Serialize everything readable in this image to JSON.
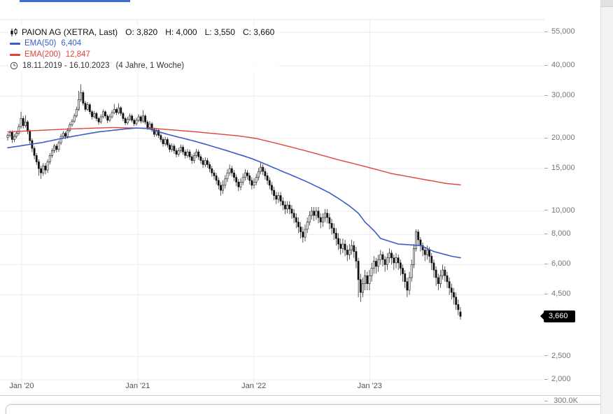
{
  "ui": {
    "top_accent_color": "#3d6bd8",
    "background": "#ffffff"
  },
  "legend": {
    "symbol": "PAION AG (XETRA, Last)",
    "ohlc_items": [
      "O: 3,820",
      "H: 4,000",
      "L: 3,550",
      "C: 3,660"
    ],
    "ema50": {
      "label": "EMA(50)",
      "value": "6,404",
      "color": "#3a5cc8"
    },
    "ema200": {
      "label": "EMA(200)",
      "value": "12,847",
      "color": "#e04338"
    },
    "period": {
      "range": "18.11.2019 - 16.10.2023",
      "detail": "(4 Jahre, 1 Woche)"
    }
  },
  "axes": {
    "y_ticks": [
      {
        "label": "55,000",
        "value": 55000
      },
      {
        "label": "40,000",
        "value": 40000
      },
      {
        "label": "30,000",
        "value": 30000
      },
      {
        "label": "20,000",
        "value": 20000
      },
      {
        "label": "15,000",
        "value": 15000
      },
      {
        "label": "10,000",
        "value": 10000
      },
      {
        "label": "8,000",
        "value": 8000
      },
      {
        "label": "6,000",
        "value": 6000
      },
      {
        "label": "4,500",
        "value": 4500
      },
      {
        "label": "2,500",
        "value": 2500
      },
      {
        "label": "2,000",
        "value": 2000
      }
    ],
    "x_ticks": [
      {
        "label": "Jan '20",
        "week": 6.3
      },
      {
        "label": "Jan '21",
        "week": 58.6
      },
      {
        "label": "Jan '22",
        "week": 110.9
      },
      {
        "label": "Jan '23",
        "week": 163.1
      }
    ],
    "price_badge": {
      "label": "3,660",
      "value": 3660,
      "bg": "#000000",
      "fg": "#ffffff"
    },
    "volume_tick": "300.0K"
  },
  "chart_data": {
    "type": "candlestick",
    "symbol": "PAION AG",
    "exchange": "XETRA",
    "timeframe": "weekly (1 Woche)",
    "date_range": "18.11.2019 - 16.10.2023",
    "duration": "4 Jahre, 1 Woche",
    "scale": "logarithmic",
    "ylim": [
      1900,
      62000
    ],
    "y_gridlines": [
      55000,
      40000,
      30000,
      20000,
      15000,
      10000,
      8000,
      6000,
      4500,
      2500,
      2000
    ],
    "x_tick_labels": [
      "Jan '20",
      "Jan '21",
      "Jan '22",
      "Jan '23"
    ],
    "last_bar": {
      "open": 3820,
      "high": 4000,
      "low": 3550,
      "close": 3660
    },
    "indicators": [
      {
        "name": "EMA(50)",
        "value": 6404,
        "color": "#3a5cc8"
      },
      {
        "name": "EMA(200)",
        "value": 12847,
        "color": "#e04338"
      }
    ],
    "candles_ohlc": [
      [
        20200,
        21000,
        19600,
        20600
      ],
      [
        20600,
        21600,
        20200,
        21200
      ],
      [
        21200,
        21600,
        19200,
        19800
      ],
      [
        19800,
        20900,
        19300,
        20400
      ],
      [
        20400,
        21500,
        20000,
        21000
      ],
      [
        21000,
        23000,
        20600,
        22400
      ],
      [
        22400,
        25800,
        22000,
        24200
      ],
      [
        24200,
        24800,
        22000,
        22600
      ],
      [
        22600,
        25000,
        22200,
        23400
      ],
      [
        23400,
        23800,
        20800,
        21400
      ],
      [
        21400,
        21800,
        19000,
        19600
      ],
      [
        19600,
        20000,
        17600,
        18200
      ],
      [
        18200,
        18600,
        16400,
        17000
      ],
      [
        17000,
        17400,
        15500,
        16000
      ],
      [
        16000,
        16400,
        14000,
        15000
      ],
      [
        15000,
        15400,
        13600,
        14400
      ],
      [
        14400,
        15800,
        14000,
        15400
      ],
      [
        15400,
        15800,
        14200,
        14800
      ],
      [
        14800,
        16400,
        14400,
        16000
      ],
      [
        16000,
        17400,
        15600,
        17000
      ],
      [
        17000,
        18200,
        16600,
        17800
      ],
      [
        17800,
        19000,
        17400,
        18600
      ],
      [
        18600,
        19000,
        17500,
        18000
      ],
      [
        18000,
        19600,
        17600,
        19200
      ],
      [
        19200,
        20900,
        18800,
        20400
      ],
      [
        20400,
        21500,
        20000,
        21000
      ],
      [
        21000,
        21400,
        19900,
        20400
      ],
      [
        20400,
        22100,
        20000,
        21600
      ],
      [
        21600,
        23300,
        21200,
        22800
      ],
      [
        22800,
        24100,
        22400,
        23600
      ],
      [
        23600,
        25400,
        23200,
        24800
      ],
      [
        24800,
        27100,
        24400,
        26400
      ],
      [
        26400,
        31500,
        26000,
        29000
      ],
      [
        29000,
        33500,
        28400,
        31000
      ],
      [
        31000,
        31600,
        27400,
        28000
      ],
      [
        28000,
        28600,
        25800,
        26400
      ],
      [
        26400,
        28300,
        26000,
        27600
      ],
      [
        27600,
        28000,
        25200,
        25800
      ],
      [
        25800,
        26200,
        24000,
        24600
      ],
      [
        24600,
        26000,
        24200,
        25400
      ],
      [
        25400,
        25800,
        23600,
        24200
      ],
      [
        24200,
        24600,
        22800,
        23400
      ],
      [
        23400,
        25200,
        23000,
        24600
      ],
      [
        24600,
        26400,
        24200,
        25800
      ],
      [
        25800,
        26200,
        24200,
        24800
      ],
      [
        24800,
        25200,
        23200,
        23800
      ],
      [
        23800,
        25200,
        23400,
        24600
      ],
      [
        24600,
        26200,
        24200,
        25600
      ],
      [
        25600,
        27800,
        25200,
        26400
      ],
      [
        26400,
        26800,
        25000,
        25600
      ],
      [
        25600,
        28000,
        25200,
        26800
      ],
      [
        26800,
        27200,
        24800,
        25400
      ],
      [
        25400,
        25800,
        23600,
        24200
      ],
      [
        24200,
        24600,
        22700,
        23200
      ],
      [
        23200,
        24600,
        22800,
        24000
      ],
      [
        24000,
        25400,
        23600,
        24800
      ],
      [
        24800,
        25200,
        23300,
        23800
      ],
      [
        23800,
        24200,
        22500,
        23000
      ],
      [
        23000,
        24400,
        22600,
        23800
      ],
      [
        23800,
        25200,
        23400,
        24600
      ],
      [
        24600,
        25000,
        23100,
        23600
      ],
      [
        23600,
        26200,
        23200,
        24800
      ],
      [
        24800,
        25200,
        22900,
        23400
      ],
      [
        23400,
        23800,
        21700,
        22200
      ],
      [
        22200,
        23600,
        21800,
        23000
      ],
      [
        23000,
        23400,
        21300,
        21800
      ],
      [
        21800,
        22200,
        20300,
        20800
      ],
      [
        20800,
        22100,
        20400,
        21600
      ],
      [
        21600,
        22000,
        20100,
        20600
      ],
      [
        20600,
        21000,
        19300,
        19800
      ],
      [
        19800,
        20200,
        18500,
        19000
      ],
      [
        19000,
        20300,
        18600,
        19800
      ],
      [
        19800,
        20200,
        18300,
        18800
      ],
      [
        18800,
        19200,
        17500,
        18000
      ],
      [
        18000,
        19100,
        17600,
        18600
      ],
      [
        18600,
        19000,
        17300,
        17800
      ],
      [
        17800,
        18200,
        16700,
        17200
      ],
      [
        17200,
        18300,
        16800,
        17800
      ],
      [
        17800,
        18900,
        17400,
        18400
      ],
      [
        18400,
        18800,
        17100,
        17600
      ],
      [
        17600,
        18000,
        16500,
        17000
      ],
      [
        17000,
        18100,
        16600,
        17600
      ],
      [
        17600,
        18000,
        16300,
        16800
      ],
      [
        16800,
        17200,
        15700,
        16200
      ],
      [
        16200,
        17500,
        15800,
        17000
      ],
      [
        17000,
        18100,
        16600,
        17600
      ],
      [
        17600,
        18000,
        16300,
        16800
      ],
      [
        16800,
        17200,
        15700,
        16200
      ],
      [
        16200,
        16600,
        15100,
        15600
      ],
      [
        15600,
        16700,
        15200,
        16200
      ],
      [
        16200,
        16600,
        15100,
        15600
      ],
      [
        15600,
        16000,
        14500,
        15000
      ],
      [
        15000,
        15400,
        13900,
        14400
      ],
      [
        14400,
        14800,
        13500,
        14000
      ],
      [
        14000,
        14400,
        12900,
        13400
      ],
      [
        13400,
        13800,
        12300,
        12800
      ],
      [
        12800,
        13200,
        11600,
        12200
      ],
      [
        12200,
        13400,
        11800,
        12800
      ],
      [
        12800,
        14100,
        12400,
        13600
      ],
      [
        13600,
        14900,
        13200,
        14400
      ],
      [
        14400,
        15600,
        14000,
        15000
      ],
      [
        15000,
        15400,
        13900,
        14400
      ],
      [
        14400,
        14800,
        13300,
        13800
      ],
      [
        13800,
        14200,
        12700,
        13200
      ],
      [
        13200,
        13600,
        12100,
        12600
      ],
      [
        12600,
        13700,
        12200,
        13200
      ],
      [
        13200,
        14300,
        12800,
        13800
      ],
      [
        13800,
        14900,
        13400,
        14400
      ],
      [
        14400,
        14800,
        13500,
        14000
      ],
      [
        14000,
        14400,
        12900,
        13400
      ],
      [
        13400,
        13800,
        12300,
        12800
      ],
      [
        12800,
        13700,
        12400,
        13200
      ],
      [
        13200,
        14300,
        12800,
        13800
      ],
      [
        13800,
        15100,
        13400,
        14600
      ],
      [
        14600,
        16000,
        14200,
        15200
      ],
      [
        15200,
        15600,
        14100,
        14600
      ],
      [
        14600,
        15000,
        13500,
        14000
      ],
      [
        14000,
        14400,
        12900,
        13400
      ],
      [
        13400,
        13800,
        12300,
        12800
      ],
      [
        12800,
        13200,
        11700,
        12200
      ],
      [
        12200,
        12600,
        11100,
        11600
      ],
      [
        11600,
        12000,
        10700,
        11200
      ],
      [
        11200,
        12000,
        10800,
        11600
      ],
      [
        11600,
        12000,
        10500,
        11000
      ],
      [
        11000,
        11400,
        10100,
        10600
      ],
      [
        10600,
        11000,
        9700,
        10200
      ],
      [
        10200,
        11000,
        9800,
        10600
      ],
      [
        10600,
        11000,
        9700,
        10200
      ],
      [
        10200,
        10600,
        9300,
        9800
      ],
      [
        9800,
        10200,
        8900,
        9400
      ],
      [
        9400,
        9800,
        8500,
        9000
      ],
      [
        9000,
        9400,
        8100,
        8600
      ],
      [
        8600,
        9000,
        7700,
        8200
      ],
      [
        8200,
        8600,
        7400,
        7800
      ],
      [
        7800,
        8800,
        7500,
        8400
      ],
      [
        8400,
        9400,
        8100,
        9000
      ],
      [
        9000,
        10000,
        8700,
        9600
      ],
      [
        9600,
        10400,
        9200,
        10000
      ],
      [
        10000,
        10400,
        9100,
        9600
      ],
      [
        9600,
        10400,
        9200,
        10000
      ],
      [
        10000,
        10400,
        8900,
        9400
      ],
      [
        9400,
        9800,
        8500,
        9000
      ],
      [
        9000,
        9800,
        8600,
        9400
      ],
      [
        9400,
        10200,
        9000,
        9800
      ],
      [
        9800,
        10200,
        8900,
        9400
      ],
      [
        9400,
        9800,
        8400,
        8900
      ],
      [
        8900,
        9300,
        8000,
        8500
      ],
      [
        8500,
        8900,
        7600,
        8100
      ],
      [
        8100,
        8500,
        7200,
        7700
      ],
      [
        7700,
        8100,
        6900,
        7300
      ],
      [
        7300,
        7700,
        6600,
        7000
      ],
      [
        7000,
        7700,
        6700,
        7300
      ],
      [
        7300,
        7600,
        6500,
        6900
      ],
      [
        6900,
        7200,
        6200,
        6600
      ],
      [
        6600,
        7300,
        6300,
        6900
      ],
      [
        6900,
        7600,
        6600,
        7200
      ],
      [
        7200,
        7500,
        6400,
        6800
      ],
      [
        6800,
        7100,
        5800,
        6200
      ],
      [
        6200,
        6400,
        4400,
        5200
      ],
      [
        5200,
        5500,
        4200,
        4600
      ],
      [
        4600,
        5300,
        4400,
        5000
      ],
      [
        5000,
        5700,
        4700,
        5400
      ],
      [
        5400,
        5600,
        4700,
        5000
      ],
      [
        5000,
        5700,
        4700,
        5400
      ],
      [
        5400,
        6100,
        5100,
        5800
      ],
      [
        5800,
        6500,
        5500,
        6200
      ],
      [
        6200,
        6400,
        5500,
        5900
      ],
      [
        5900,
        6600,
        5600,
        6300
      ],
      [
        6300,
        6900,
        6000,
        6600
      ],
      [
        6600,
        6800,
        5900,
        6300
      ],
      [
        6300,
        6500,
        5600,
        6000
      ],
      [
        6000,
        6700,
        5700,
        6400
      ],
      [
        6400,
        7000,
        6100,
        6700
      ],
      [
        6700,
        6900,
        6000,
        6400
      ],
      [
        6400,
        6600,
        5700,
        6100
      ],
      [
        6100,
        6700,
        5800,
        6400
      ],
      [
        6400,
        6600,
        5700,
        6100
      ],
      [
        6100,
        6300,
        5400,
        5800
      ],
      [
        5800,
        6000,
        5100,
        5500
      ],
      [
        5500,
        5700,
        4800,
        5100
      ],
      [
        5100,
        5300,
        4400,
        4700
      ],
      [
        4700,
        5600,
        4500,
        5300
      ],
      [
        5300,
        6300,
        5100,
        6000
      ],
      [
        6000,
        7300,
        5800,
        7000
      ],
      [
        7000,
        8400,
        6800,
        8200
      ],
      [
        8200,
        8400,
        7200,
        7600
      ],
      [
        7600,
        7800,
        6800,
        7200
      ],
      [
        7200,
        7400,
        6500,
        6900
      ],
      [
        6900,
        7100,
        6200,
        6600
      ],
      [
        6600,
        7200,
        6300,
        6900
      ],
      [
        6900,
        7100,
        6100,
        6500
      ],
      [
        6500,
        6700,
        5700,
        6100
      ],
      [
        6100,
        6300,
        5300,
        5700
      ],
      [
        5700,
        5900,
        4900,
        5300
      ],
      [
        5300,
        5500,
        4700,
        5000
      ],
      [
        5000,
        5700,
        4800,
        5400
      ],
      [
        5400,
        6000,
        5200,
        5700
      ],
      [
        5700,
        5900,
        5100,
        5400
      ],
      [
        5400,
        5600,
        4800,
        5100
      ],
      [
        5100,
        5300,
        4500,
        4800
      ],
      [
        4800,
        5000,
        4300,
        4600
      ],
      [
        4600,
        4800,
        4100,
        4400
      ],
      [
        4400,
        4600,
        3900,
        4100
      ],
      [
        4100,
        4300,
        3700,
        3900
      ],
      [
        3820,
        4000,
        3550,
        3660
      ]
    ],
    "ema50_keypoints": [
      [
        0,
        18300
      ],
      [
        15,
        19200
      ],
      [
        28,
        20300
      ],
      [
        41,
        21300
      ],
      [
        53,
        21900
      ],
      [
        58,
        22100
      ],
      [
        63,
        22000
      ],
      [
        72,
        20800
      ],
      [
        85,
        19400
      ],
      [
        97,
        18000
      ],
      [
        110,
        16500
      ],
      [
        123,
        14700
      ],
      [
        135,
        13200
      ],
      [
        145,
        11900
      ],
      [
        154,
        10500
      ],
      [
        158,
        9800
      ],
      [
        161,
        9000
      ],
      [
        165,
        8300
      ],
      [
        168,
        7700
      ],
      [
        176,
        7300
      ],
      [
        186,
        7200
      ],
      [
        192,
        6800
      ],
      [
        200,
        6500
      ],
      [
        204,
        6404
      ]
    ],
    "ema200_keypoints": [
      [
        0,
        21300
      ],
      [
        28,
        21900
      ],
      [
        47,
        22200
      ],
      [
        66,
        22000
      ],
      [
        85,
        21300
      ],
      [
        104,
        20500
      ],
      [
        112,
        20000
      ],
      [
        123,
        18900
      ],
      [
        135,
        17700
      ],
      [
        148,
        16400
      ],
      [
        161,
        15300
      ],
      [
        173,
        14300
      ],
      [
        186,
        13600
      ],
      [
        198,
        13000
      ],
      [
        204,
        12847
      ]
    ],
    "volume_axis_visible_tick": "300.0K"
  }
}
